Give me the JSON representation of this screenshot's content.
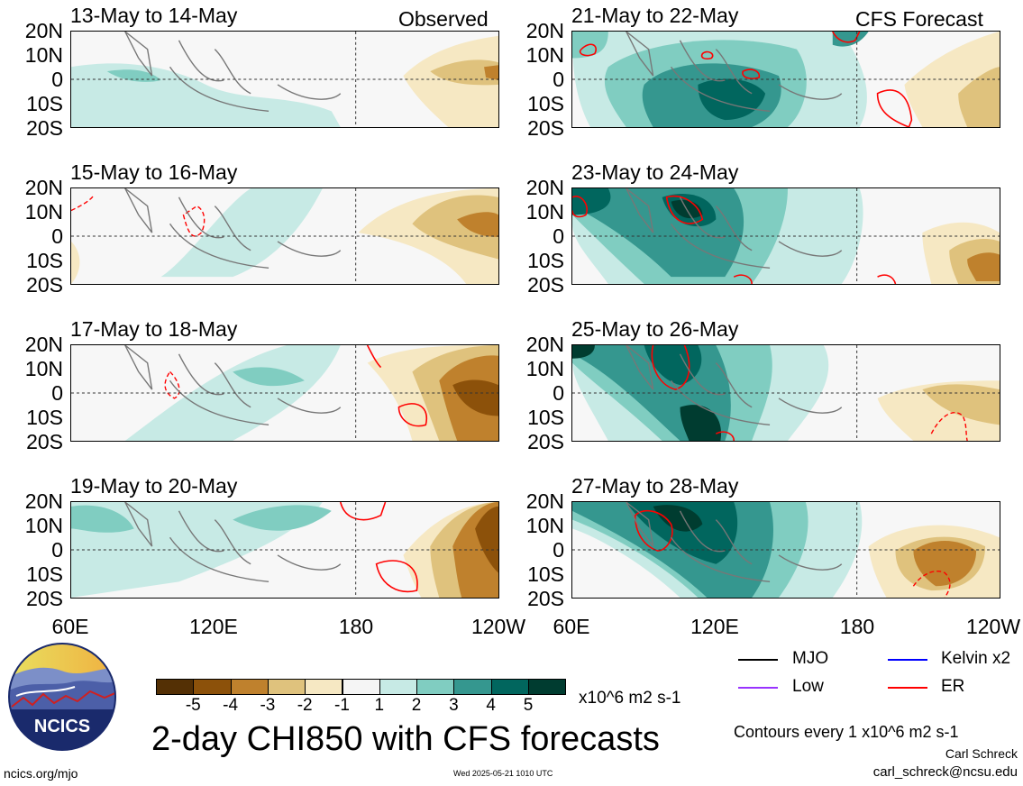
{
  "header": {
    "observed_label": "Observed",
    "forecast_label": "CFS Forecast"
  },
  "panels": {
    "left": [
      {
        "title": "13-May to 14-May"
      },
      {
        "title": "15-May to 16-May"
      },
      {
        "title": "17-May to 18-May"
      },
      {
        "title": "19-May to 20-May"
      }
    ],
    "right": [
      {
        "title": "21-May to 22-May"
      },
      {
        "title": "23-May to 24-May"
      },
      {
        "title": "25-May to 26-May"
      },
      {
        "title": "27-May to 28-May"
      }
    ]
  },
  "lat_labels": [
    "20N",
    "10N",
    "0",
    "10S",
    "20S"
  ],
  "lon_labels": [
    "60E",
    "120E",
    "180",
    "120W"
  ],
  "colorbar": {
    "tick_labels": [
      "-5",
      "-4",
      "-3",
      "-2",
      "-1",
      "1",
      "2",
      "3",
      "4",
      "5"
    ],
    "units": "x10^6 m2 s-1",
    "colors": [
      "#543005",
      "#8c510a",
      "#bf812d",
      "#dfc27d",
      "#f6e8c3",
      "#f5f5f5",
      "#c7eae5",
      "#80cdc1",
      "#35978f",
      "#01665e",
      "#003c30"
    ]
  },
  "legend": {
    "items": [
      {
        "label": "MJO",
        "color": "#000000"
      },
      {
        "label": "Kelvin x2",
        "color": "#0000ff"
      },
      {
        "label": "Low",
        "color": "#9933ff"
      },
      {
        "label": "ER",
        "color": "#ff0000"
      }
    ],
    "contours_note": "Contours every 1 x10^6 m2 s-1"
  },
  "footer": {
    "main_title": "2-day CHI850 with CFS forecasts",
    "website": "ncics.org/mjo",
    "timestamp": "Wed 2025-05-21 1010 UTC",
    "author": "Carl Schreck",
    "email": "carl_schreck@ncsu.edu",
    "logo_text": "NCICS"
  }
}
